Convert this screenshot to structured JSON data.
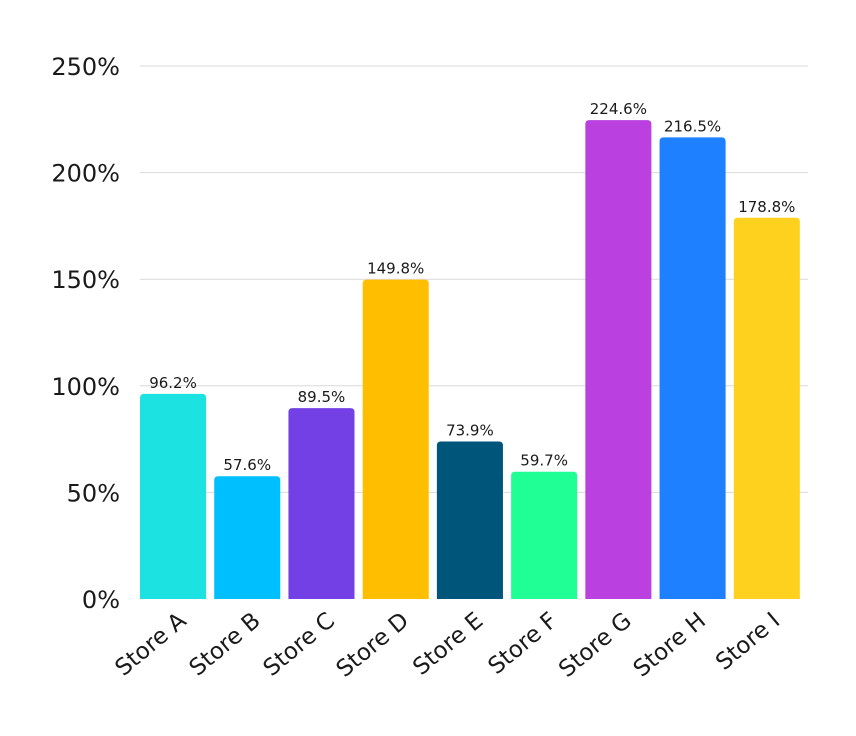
{
  "chart_data": {
    "type": "bar",
    "categories": [
      "Store A",
      "Store B",
      "Store C",
      "Store D",
      "Store E",
      "Store F",
      "Store G",
      "Store H",
      "Store I"
    ],
    "values": [
      96.2,
      57.6,
      89.5,
      149.8,
      73.9,
      59.7,
      224.6,
      216.5,
      178.8
    ],
    "value_labels": [
      "96.2%",
      "57.6%",
      "89.5%",
      "149.8%",
      "73.9%",
      "59.7%",
      "224.6%",
      "216.5%",
      "178.8%"
    ],
    "colors": [
      "#1de2e2",
      "#00bfff",
      "#7340e6",
      "#ffbf00",
      "#00567a",
      "#1fff95",
      "#bb40e0",
      "#1f80ff",
      "#ffd11f"
    ],
    "ylim": [
      0,
      250
    ],
    "yticks": [
      0,
      50,
      100,
      150,
      200,
      250
    ],
    "ytick_labels": [
      "0%",
      "50%",
      "100%",
      "150%",
      "200%",
      "250%"
    ],
    "grid": true,
    "title": "",
    "xlabel": "",
    "ylabel": ""
  }
}
